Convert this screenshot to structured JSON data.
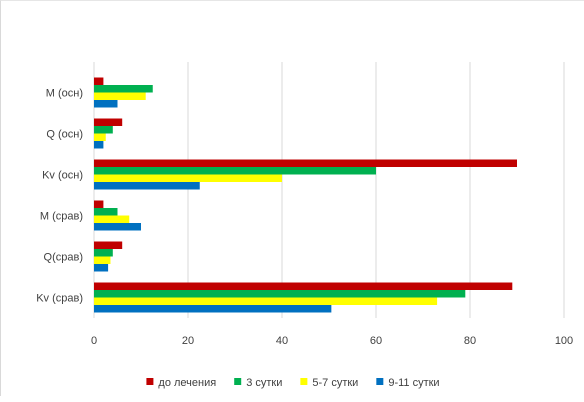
{
  "chart_data": {
    "type": "bar",
    "orientation": "horizontal",
    "title": "",
    "xlabel": "",
    "ylabel": "",
    "categories": [
      "M (осн)",
      "Q (осн)",
      "Kv (осн)",
      "M (срав)",
      "Q(срав)",
      "Kv (срав)"
    ],
    "series": [
      {
        "name": "до лечения",
        "color": "#c00000",
        "values": [
          2,
          6,
          90,
          2,
          6,
          89
        ]
      },
      {
        "name": "3 сутки",
        "color": "#00b050",
        "values": [
          12.5,
          4,
          60,
          5,
          4,
          79
        ]
      },
      {
        "name": "5-7 сутки",
        "color": "#ffff00",
        "values": [
          11,
          2.5,
          40,
          7.5,
          3.5,
          73
        ]
      },
      {
        "name": "9-11 сутки",
        "color": "#0070c0",
        "values": [
          5,
          2,
          22.5,
          10,
          3,
          50.5
        ]
      }
    ],
    "xlim": [
      0,
      100
    ],
    "xticks": [
      0,
      20,
      40,
      60,
      80,
      100
    ],
    "xtick_labels": [
      "0",
      "20",
      "40",
      "60",
      "80",
      "100"
    ],
    "grid": true,
    "legend_position": "bottom",
    "gridline_color": "#d9d9d9"
  }
}
